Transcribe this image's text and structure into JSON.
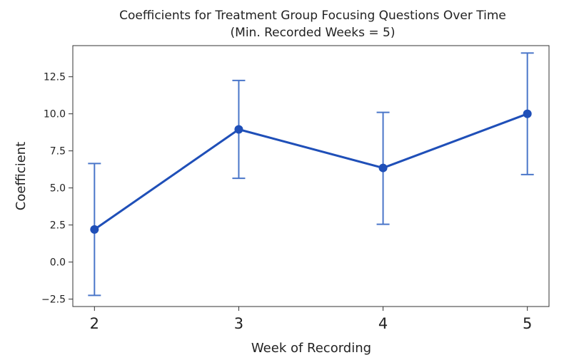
{
  "chart_data": {
    "type": "line",
    "title": "Coefficients for Treatment Group Focusing Questions Over Time",
    "subtitle": "(Min. Recorded Weeks = 5)",
    "xlabel": "Week of Recording",
    "ylabel": "Coefficient",
    "x": [
      2,
      3,
      4,
      5
    ],
    "x_tick_labels": [
      "2",
      "3",
      "4",
      "5"
    ],
    "y_ticks": [
      -2.5,
      0.0,
      2.5,
      5.0,
      7.5,
      10.0,
      12.5
    ],
    "y_tick_labels": [
      "−2.5",
      "0.0",
      "2.5",
      "5.0",
      "7.5",
      "10.0",
      "12.5"
    ],
    "xlim": [
      1.85,
      5.15
    ],
    "ylim": [
      -3.0,
      14.6
    ],
    "grid": false,
    "series": [
      {
        "values": [
          2.2,
          8.95,
          6.35,
          10.0
        ],
        "error_low": [
          -2.25,
          5.65,
          2.55,
          5.9
        ],
        "error_high": [
          6.65,
          12.25,
          10.1,
          14.1
        ],
        "color": "#1f4fb8"
      }
    ]
  }
}
